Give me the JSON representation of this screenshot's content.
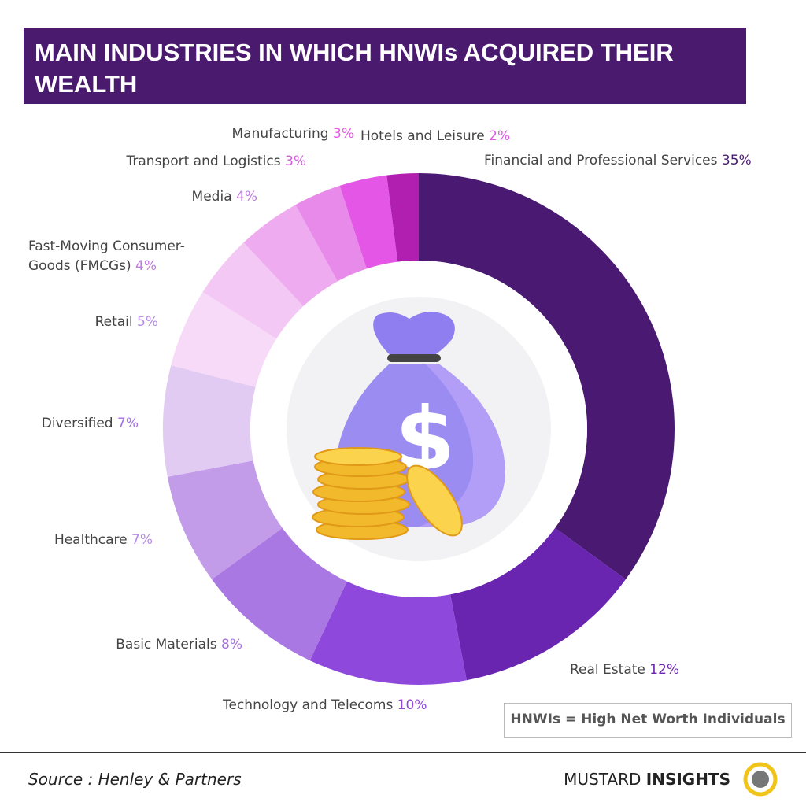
{
  "chart_data": {
    "type": "donut",
    "title": "MAIN INDUSTRIES IN WHICH HNWIs ACQUIRED THEIR WEALTH",
    "categories": [
      "Financial and Professional Services",
      "Real Estate",
      "Technology and Telecoms",
      "Basic Materials",
      "Healthcare",
      "Diversified",
      "Retail",
      "Fast-Moving Consumer-Goods (FMCGs)",
      "Media",
      "Transport and Logistics",
      "Manufacturing",
      "Hotels and Leisure"
    ],
    "values": [
      35,
      12,
      10,
      8,
      7,
      7,
      5,
      4,
      4,
      3,
      3,
      2
    ],
    "value_labels": [
      "35%",
      "12%",
      "10%",
      "8%",
      "7%",
      "7%",
      "5%",
      "4%",
      "4%",
      "3%",
      "3%",
      "2%"
    ],
    "colors": [
      "#4a1a72",
      "#6a25b0",
      "#8e48dc",
      "#a978e3",
      "#c39ce9",
      "#e1cbf3",
      "#f7d9f8",
      "#f4c8f4",
      "#eeabf0",
      "#e88ae9",
      "#e356e6",
      "#b01fb0"
    ],
    "label_colors": [
      "#4a1a72",
      "#6a25b0",
      "#8e48dc",
      "#a470e0",
      "#b58ae6",
      "#a470e0",
      "#b58ae6",
      "#c07ae0",
      "#c07ae0",
      "#d05ad8",
      "#e356e6",
      "#e356e6"
    ]
  },
  "note": "HNWIs = High Net Worth Individuals",
  "footer": {
    "source": "Source : Henley & Partners",
    "brand_first": "MUSTARD",
    "brand_second": "INSIGHTS"
  }
}
